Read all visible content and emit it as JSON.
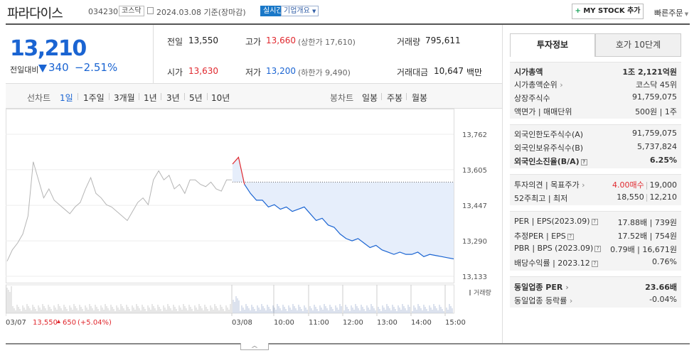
{
  "header": {
    "company": "파라다이스",
    "code": "034230",
    "market": "코스닥",
    "date_basis": "2024.03.08  기준(장마감)",
    "realtime": "실시간",
    "overview": "기업개요",
    "mystock": "MY STOCK 추가",
    "mystock_plus": "+",
    "quick_order": "빠른주문"
  },
  "summary": {
    "price": "13,210",
    "change_label": "전일대비",
    "change_amount": "340",
    "change_pct": "−2.51%",
    "prev_close_label": "전일",
    "prev_close": "13,550",
    "high_label": "고가",
    "high": "13,660",
    "upper_limit": "(상한가 17,610)",
    "volume_label": "거래량",
    "volume": "795,611",
    "open_label": "시가",
    "open": "13,630",
    "low_label": "저가",
    "low": "13,200",
    "lower_limit": "(하한가 9,490)",
    "amount_label": "거래대금",
    "amount": "10,647",
    "amount_unit": "백만"
  },
  "periods": {
    "line_label": "선차트",
    "line_items": [
      "1일",
      "1주일",
      "3개월",
      "1년",
      "3년",
      "5년",
      "10년"
    ],
    "active": "1일",
    "candle_label": "봉차트",
    "candle_items": [
      "일봉",
      "주봉",
      "월봉"
    ]
  },
  "chart_data": {
    "type": "line",
    "y_ticks": [
      "13,762",
      "13,605",
      "13,447",
      "13,290",
      "13,133"
    ],
    "x_ticks": [
      "03/07",
      "03/08",
      "10:00",
      "11:00",
      "12:00",
      "13:00",
      "14:00",
      "15:00"
    ],
    "prev_day_info": {
      "close": "13,550",
      "change": "650",
      "change_pct": "(+5.04%)"
    },
    "volume_label": "거래량",
    "reference_price": 13550,
    "series": [
      {
        "values": [
          13200,
          13250,
          13280,
          13320,
          13400,
          13640,
          13560,
          13480,
          13520,
          13470,
          13450,
          13430,
          13410,
          13440,
          13460,
          13520,
          13570,
          13500,
          13480,
          13450,
          13440,
          13420,
          13400,
          13380,
          13420,
          13460,
          13480,
          13450,
          13560,
          13600,
          13560,
          13580,
          13520,
          13540,
          13500,
          13560,
          13560,
          13540,
          13530,
          13550,
          13520,
          13510,
          13560,
          13560
        ]
      },
      {
        "values": [
          13630,
          13660,
          13540,
          13500,
          13470,
          13470,
          13440,
          13450,
          13430,
          13440,
          13420,
          13430,
          13440,
          13410,
          13380,
          13390,
          13360,
          13350,
          13320,
          13300,
          13290,
          13300,
          13280,
          13260,
          13270,
          13250,
          13240,
          13230,
          13240,
          13230,
          13230,
          13240,
          13220,
          13230,
          13225,
          13220,
          13215,
          13210
        ]
      }
    ]
  },
  "info_tabs": [
    "투자정보",
    "호가 10단계"
  ],
  "info": {
    "g1": [
      {
        "k": "시가총액",
        "v": "1조 2,121억원",
        "bold": true
      },
      {
        "k": "시가총액순위",
        "v": "코스닥 45위"
      },
      {
        "k": "상장주식수",
        "v": "91,759,075"
      },
      {
        "k": "액면가 | 매매단위",
        "v": "500원 | 1주"
      }
    ],
    "g2": [
      {
        "k": "외국인한도주식수(A)",
        "v": "91,759,075"
      },
      {
        "k": "외국인보유주식수(B)",
        "v": "5,737,824"
      },
      {
        "k": "외국인소진율(B/A)",
        "v": "6.25%",
        "bold": true
      }
    ],
    "g3": [
      {
        "k": "투자의견 | 목표주가",
        "v1": "4.00매수",
        "v2": "19,000"
      },
      {
        "k": "52주최고 | 최저",
        "v1": "18,550",
        "v2": "12,210"
      }
    ],
    "g4": [
      {
        "k": "PER | EPS(2023.09)",
        "v": "17.88배 | 739원"
      },
      {
        "k": "추정PER | EPS",
        "v": "17.52배 | 754원"
      },
      {
        "k": "PBR | BPS (2023.09)",
        "v": "0.79배 | 16,671원"
      },
      {
        "k": "배당수익률 | 2023.12",
        "v": "0.76%"
      }
    ],
    "g5": [
      {
        "k": "동일업종 PER",
        "v": "23.66배",
        "bold": true
      },
      {
        "k": "동일업종 등락률",
        "v": "-0.04%"
      }
    ]
  }
}
